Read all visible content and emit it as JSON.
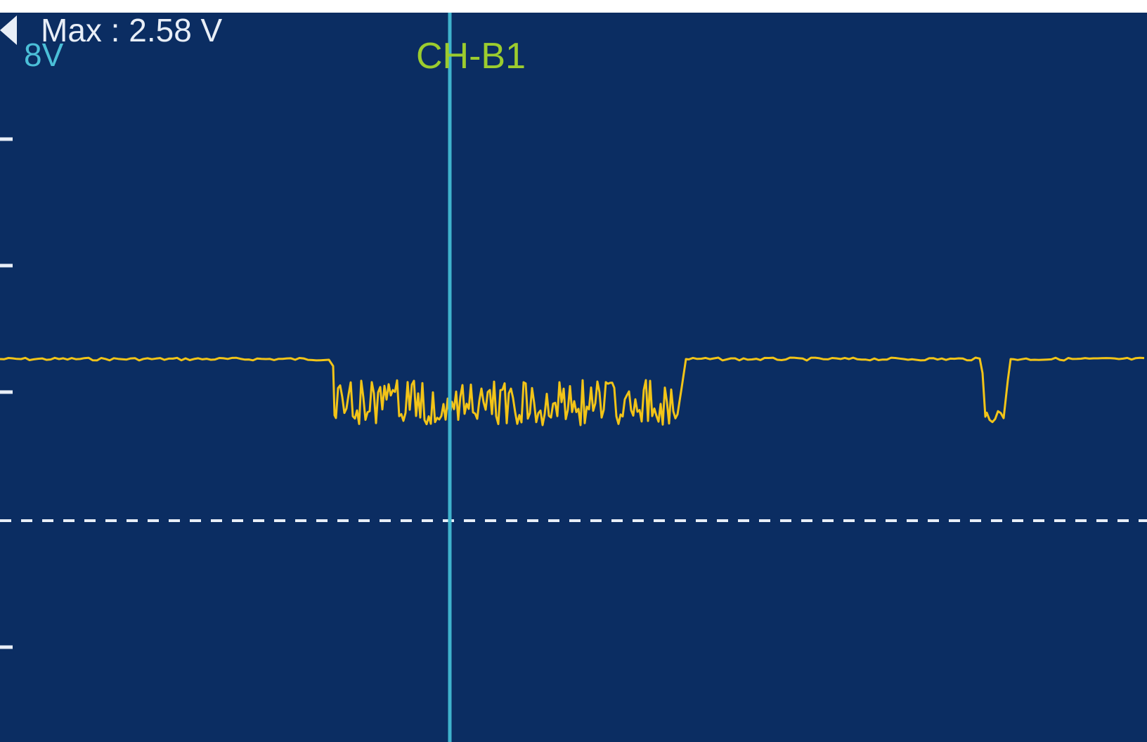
{
  "screen": {
    "scale_label": "8V",
    "channel_label": "CH-B1",
    "max_label": "Max : 2.58 V",
    "left_arrow_icon": "left-arrow-icon"
  },
  "colors": {
    "background": "#0b2d62",
    "scale_label": "#4bbfd8",
    "channel_label": "#9ccc2e",
    "max_label": "#e8eef7",
    "trace": "#f2c418",
    "cursor_line": "#3fb3cc",
    "grid_ticks": "#e8eef7",
    "zero_line": "#e8eef7"
  },
  "trace_description_levels": {
    "baseline_level": "high",
    "burst_level": "low"
  }
}
